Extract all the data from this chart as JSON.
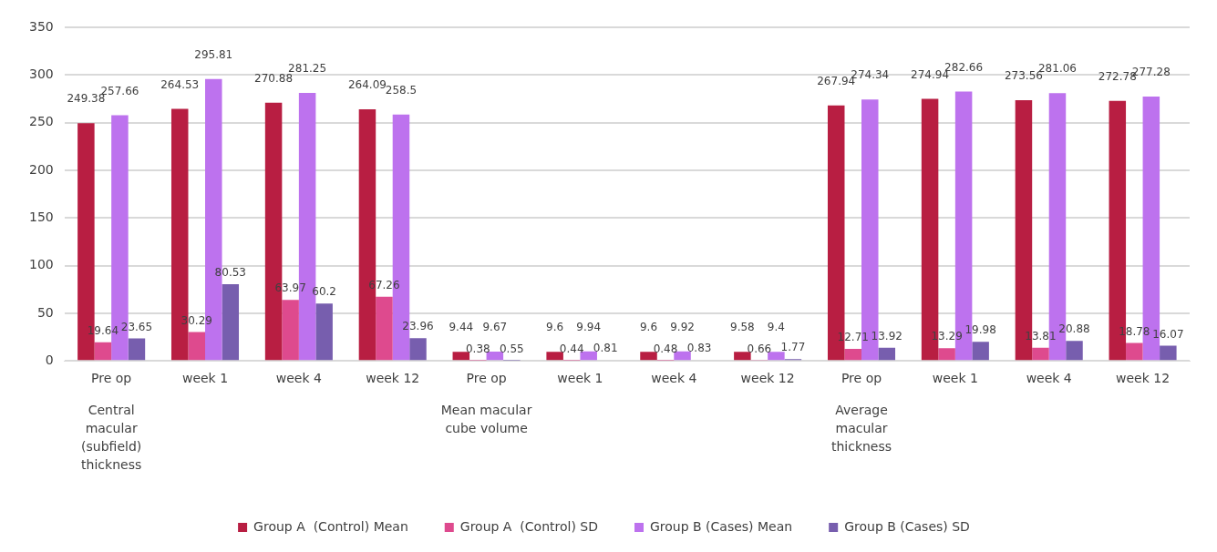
{
  "chart_data": {
    "type": "bar",
    "categories": [
      "Pre op",
      "week 1",
      "week 4",
      "week 12",
      "Pre op",
      "week 1",
      "week 4",
      "week 12",
      "Pre op",
      "week 1",
      "week 4",
      "week 12"
    ],
    "series": [
      {
        "name": "Group A  (Control) Mean",
        "color": "#b81e42",
        "values": [
          249.38,
          264.53,
          270.88,
          264.09,
          9.44,
          9.6,
          9.6,
          9.58,
          267.94,
          274.94,
          273.56,
          272.78
        ]
      },
      {
        "name": "Group A  (Control) SD",
        "color": "#de4a8e",
        "values": [
          19.64,
          30.29,
          63.97,
          67.26,
          0.38,
          0.44,
          0.48,
          0.66,
          12.71,
          13.29,
          13.81,
          18.78
        ]
      },
      {
        "name": "Group B (Cases) Mean",
        "color": "#bd72ee",
        "values": [
          257.66,
          295.81,
          281.25,
          258.5,
          9.67,
          9.94,
          9.92,
          9.4,
          274.34,
          282.66,
          281.06,
          277.28
        ]
      },
      {
        "name": "Group B (Cases) SD",
        "color": "#775eae",
        "values": [
          23.65,
          80.53,
          60.2,
          23.96,
          0.55,
          0.81,
          0.83,
          1.77,
          13.92,
          19.98,
          20.88,
          16.07
        ]
      }
    ],
    "annotations": [
      "Central macular (subfield) thickness",
      "Mean macular cube volume",
      "Average macular thickness"
    ],
    "ylim": [
      0,
      350
    ],
    "yticks": [
      0,
      50,
      100,
      150,
      200,
      250,
      300,
      350
    ],
    "grid": "y",
    "legend": "bottom",
    "data_labels": true
  }
}
